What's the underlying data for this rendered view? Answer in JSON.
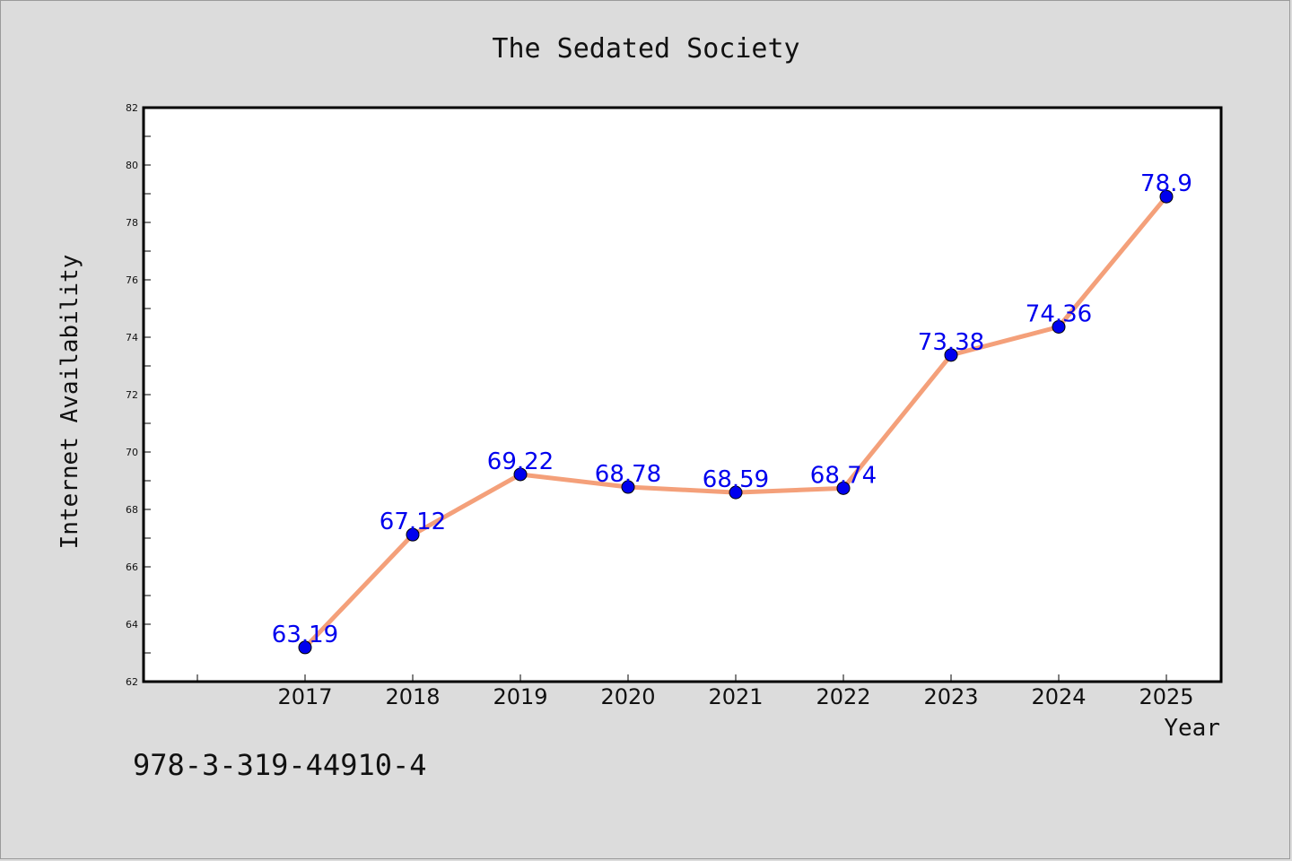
{
  "chart_data": {
    "type": "line",
    "title": "The Sedated Society",
    "xlabel": "Year",
    "ylabel": "Internet Availability",
    "categories": [
      "2017",
      "2018",
      "2019",
      "2020",
      "2021",
      "2022",
      "2023",
      "2024",
      "2025"
    ],
    "series": [
      {
        "values": [
          63.19,
          67.12,
          69.22,
          68.78,
          68.59,
          68.74,
          73.38,
          74.36,
          78.9
        ],
        "data_labels": [
          "63.19",
          "67.12",
          "69.22",
          "68.78",
          "68.59",
          "68.74",
          "73.38",
          "74.36",
          "78.9"
        ],
        "line_color": "#f4a07a",
        "marker_color": "#0000ee"
      }
    ],
    "ylim": [
      62,
      82
    ],
    "yticks": [
      "62",
      "64",
      "66",
      "68",
      "70",
      "72",
      "74",
      "76",
      "78",
      "80",
      "82"
    ],
    "grid": false,
    "legend": "none"
  },
  "footer": {
    "isbn": "978-3-319-44910-4"
  },
  "colors": {
    "background": "#dcdcdc",
    "plot_background": "#ffffff",
    "axis": "#000000"
  }
}
